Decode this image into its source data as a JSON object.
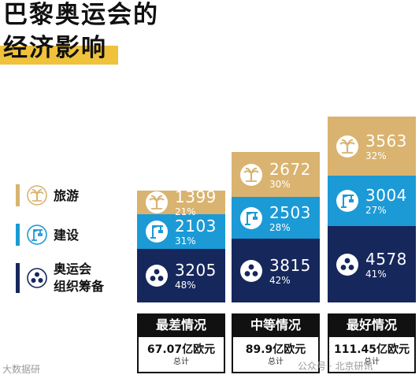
{
  "title": {
    "line1": "巴黎奥运会的",
    "line2": "经济影响"
  },
  "colors": {
    "tourism": "#d9b36f",
    "construction": "#1b9ad6",
    "organization": "#16275c",
    "highlight": "#f0c23b",
    "dark": "#111111"
  },
  "legend": [
    {
      "key": "tourism",
      "label": "旅游",
      "icon": "palm-tree-icon"
    },
    {
      "key": "construction",
      "label": "建设",
      "icon": "crane-icon"
    },
    {
      "key": "organization",
      "label_line1": "奥运会",
      "label_line2": "组织筹备",
      "icon": "rings-network-icon"
    }
  ],
  "chart_data": {
    "type": "bar",
    "stacked": true,
    "categories": [
      "最差情况",
      "中等情况",
      "最好情况"
    ],
    "series": [
      {
        "name": "旅游",
        "values": [
          1399,
          2672,
          3563
        ],
        "percent_labels": [
          "21%",
          "30%",
          "32%"
        ]
      },
      {
        "name": "建设",
        "values": [
          2103,
          2503,
          3004
        ],
        "percent_labels": [
          "31%",
          "28%",
          "27%"
        ]
      },
      {
        "name": "奥运会组织筹备",
        "values": [
          3205,
          3815,
          4578
        ],
        "percent_labels": [
          "48%",
          "42%",
          "41%"
        ]
      }
    ],
    "totals": [
      "67.07亿欧元",
      "89.9亿欧元",
      "111.45亿欧元"
    ],
    "total_label": "总计"
  },
  "watermarks": {
    "left": "大数据研",
    "right": "公众号 · 北京研讯"
  }
}
